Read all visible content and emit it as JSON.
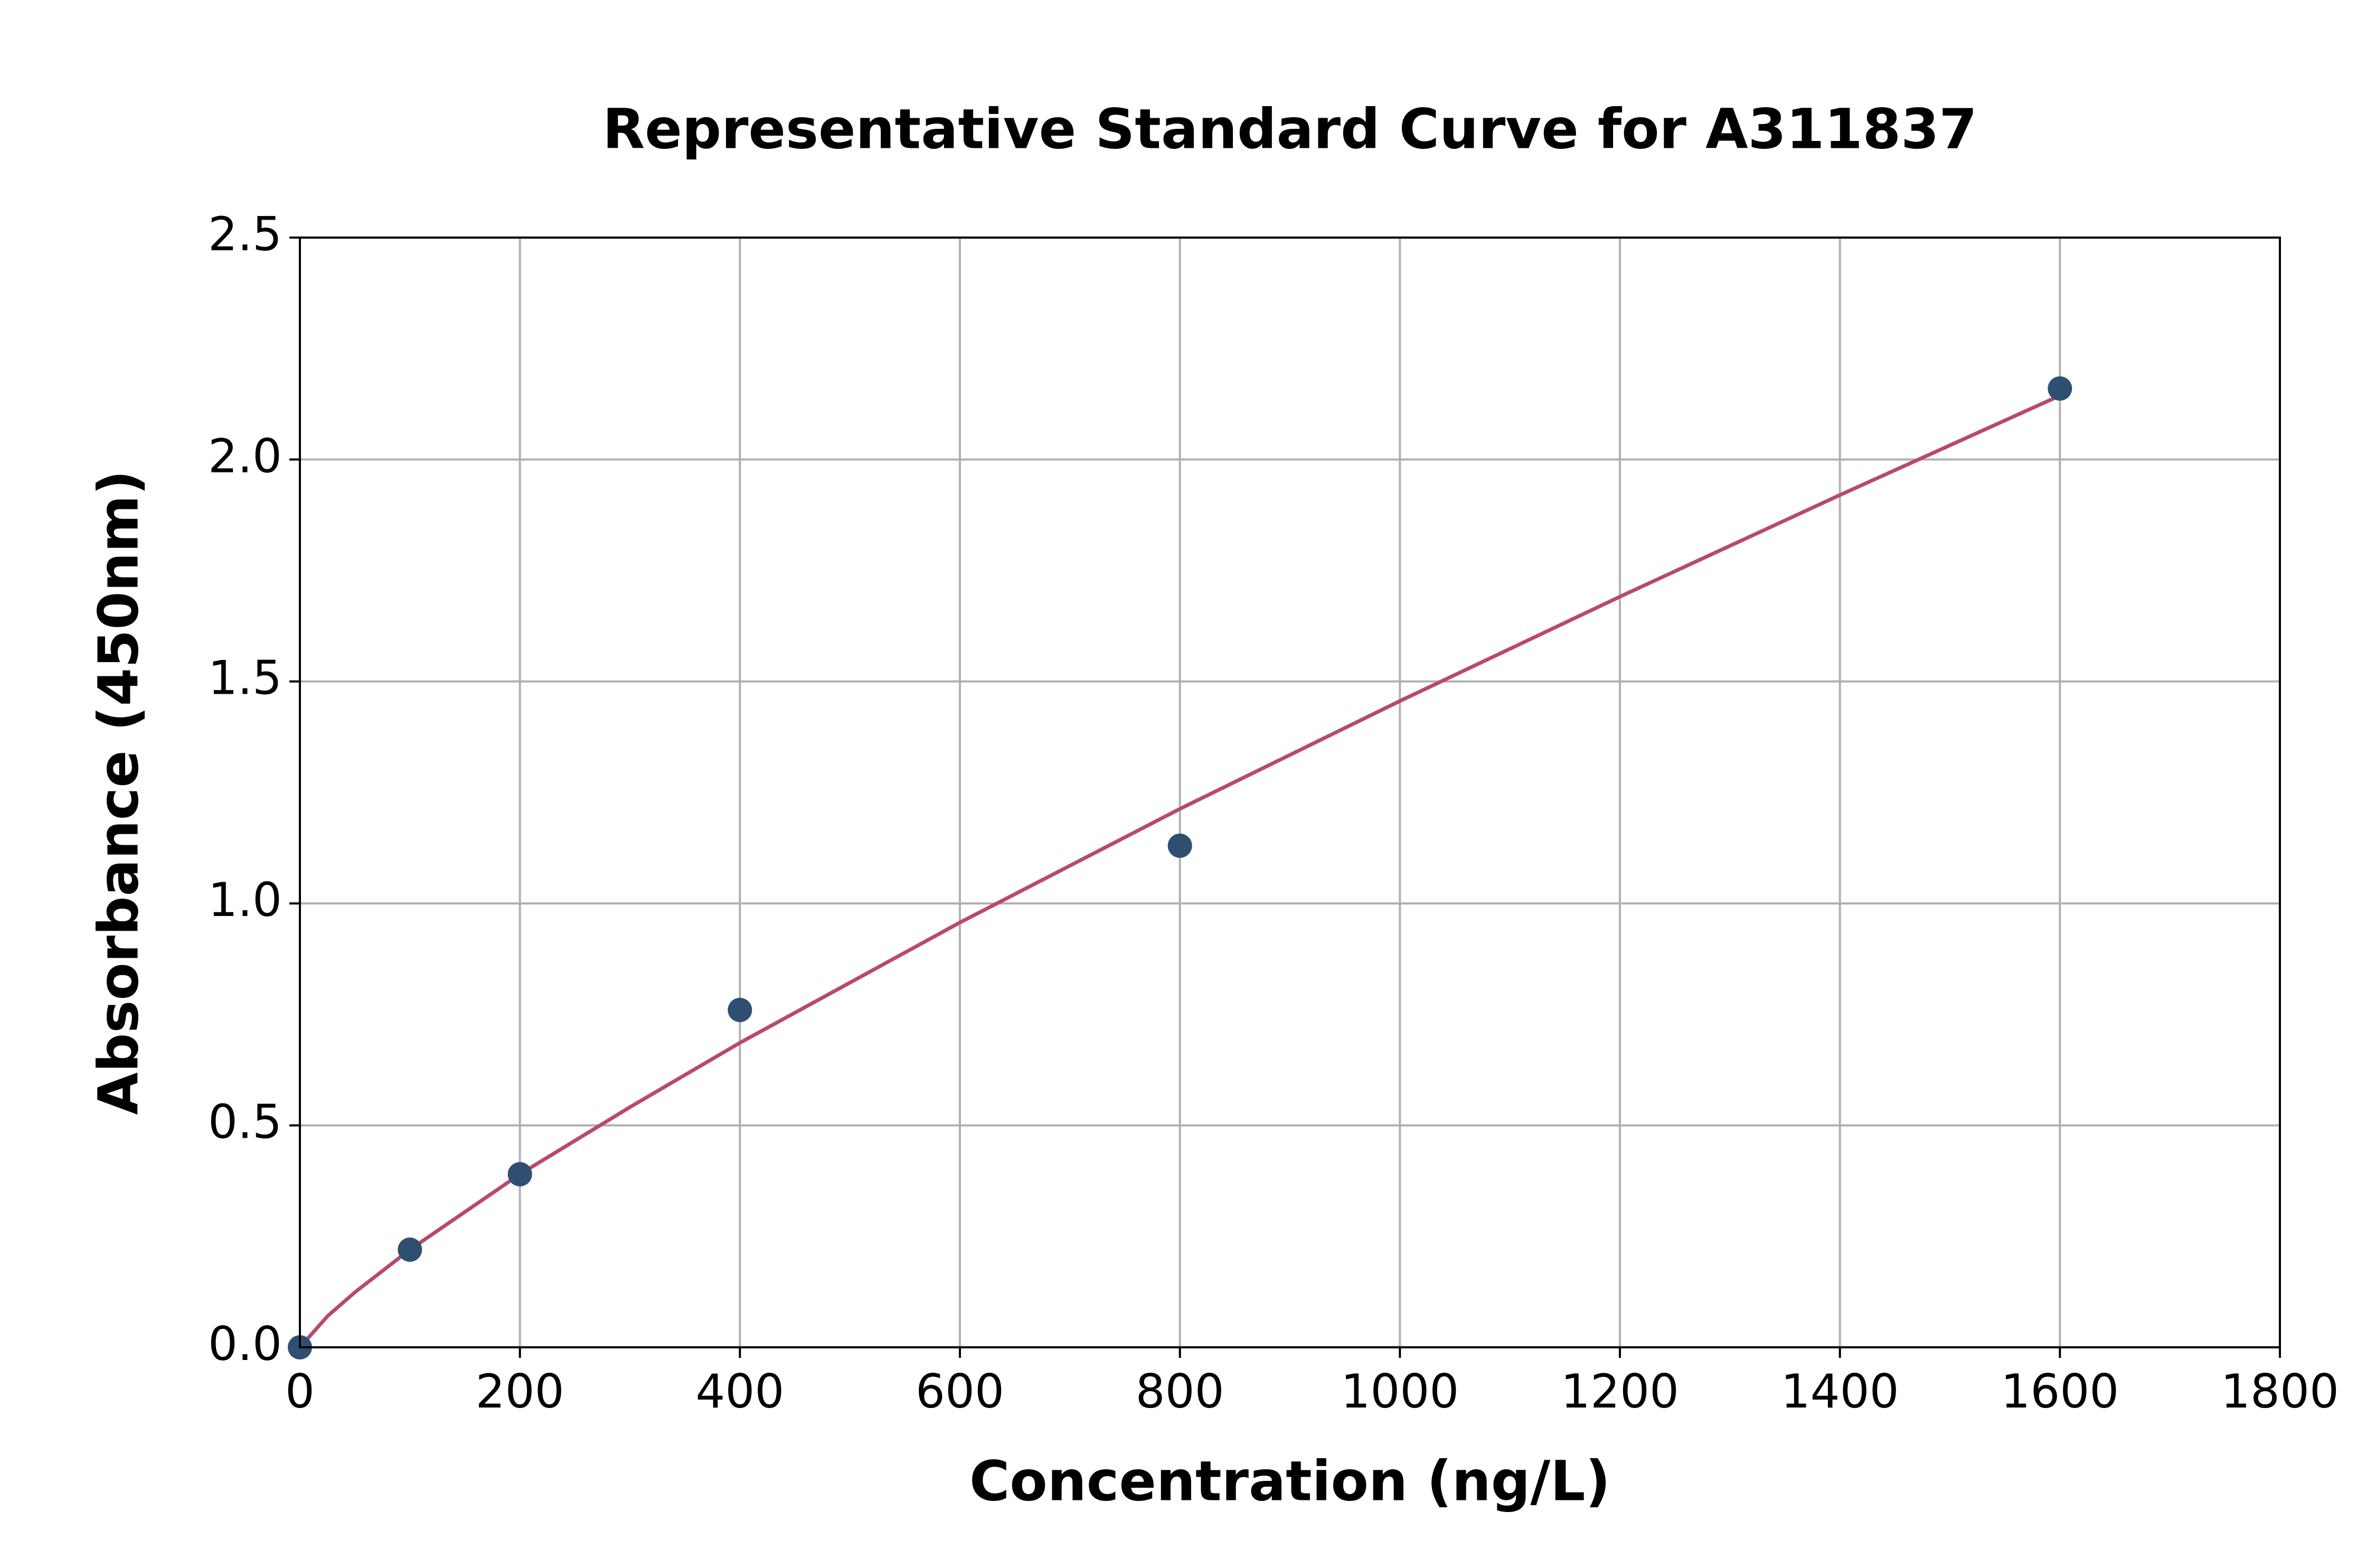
{
  "chart_data": {
    "type": "scatter",
    "title": "Representative Standard Curve for A311837",
    "x_label": "Concentration (ng/L)",
    "y_label": "Absorbance (450nm)",
    "xlim": [
      0,
      1800
    ],
    "ylim": [
      0,
      2.5
    ],
    "xticks": [
      0,
      200,
      400,
      600,
      800,
      1000,
      1200,
      1400,
      1600,
      1800
    ],
    "yticks": [
      {
        "value": 0,
        "label": "0.0"
      },
      0.5,
      {
        "value": 1,
        "label": "1.0"
      },
      1.5,
      {
        "value": 2,
        "label": "2.0"
      },
      2.5
    ],
    "grid": true,
    "series": [
      {
        "type": "scatter",
        "color": "#2e4f72",
        "x": [
          0,
          100,
          200,
          400,
          800,
          1600
        ],
        "values": [
          0,
          0.22,
          0.39,
          0.76,
          1.13,
          2.16
        ]
      },
      {
        "type": "line",
        "color": "#b8496f",
        "x": [
          0,
          25,
          50,
          100,
          200,
          300,
          400,
          600,
          800,
          1000,
          1200,
          1400,
          1600
        ],
        "values": [
          0,
          0.07,
          0.124,
          0.22,
          0.39,
          0.541,
          0.686,
          0.957,
          1.213,
          1.456,
          1.691,
          1.92,
          2.144
        ]
      }
    ]
  }
}
